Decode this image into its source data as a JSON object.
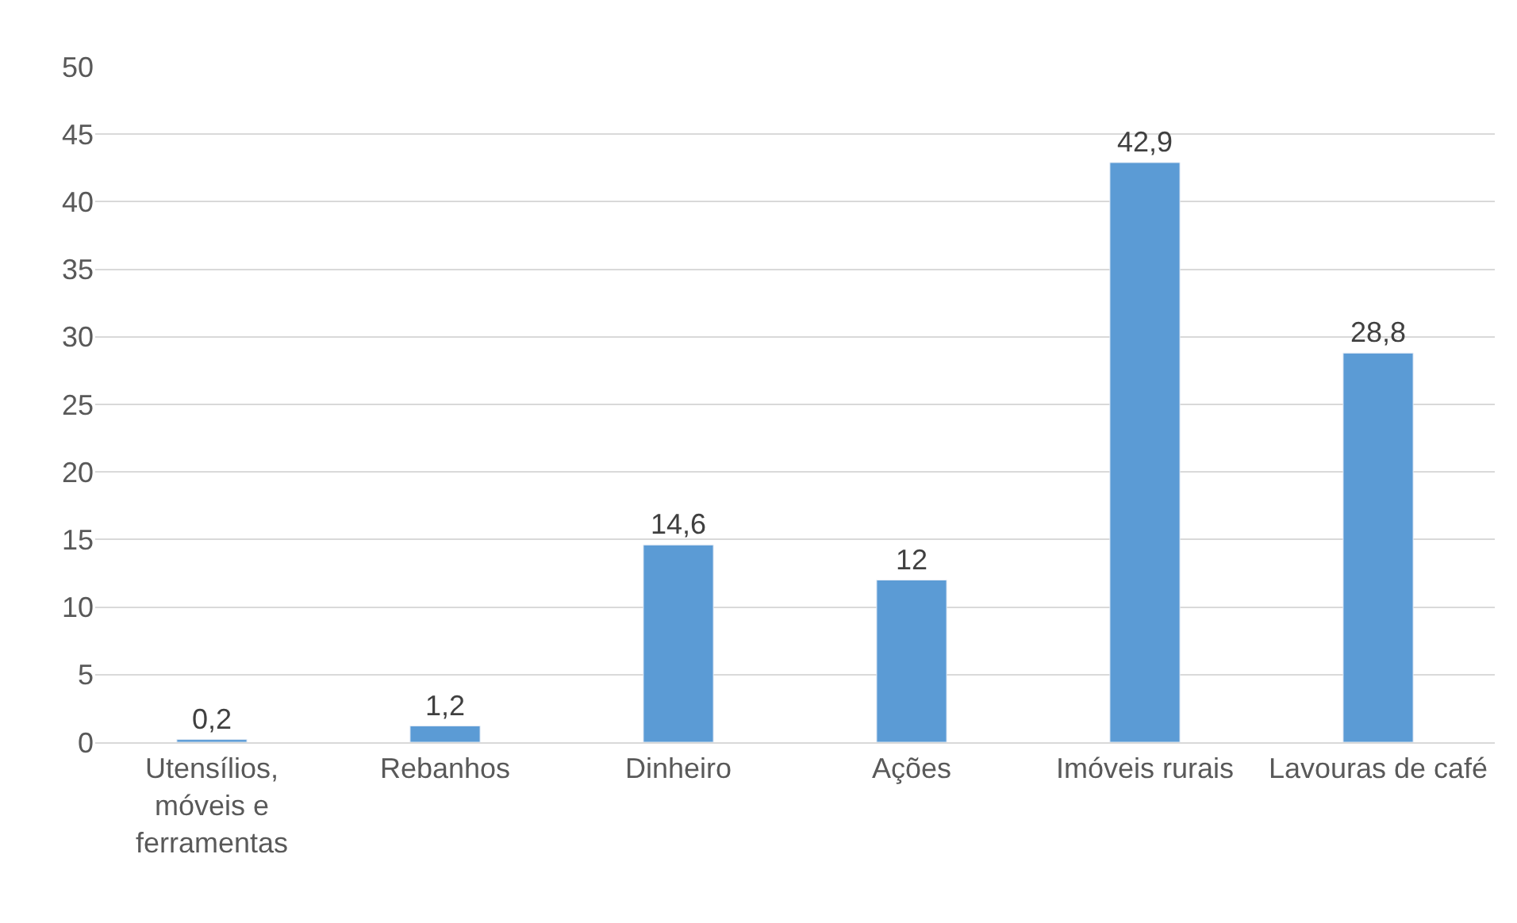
{
  "chart_data": {
    "type": "bar",
    "categories": [
      "Utensílios, móveis e ferramentas",
      "Rebanhos",
      "Dinheiro",
      "Ações",
      "Imóveis rurais",
      "Lavouras de café"
    ],
    "values": [
      0.2,
      1.2,
      14.6,
      12,
      42.9,
      28.8
    ],
    "value_labels": [
      "0,2",
      "1,2",
      "14,6",
      "12",
      "42,9",
      "28,8"
    ],
    "color": "#5b9bd5",
    "ylim": [
      0,
      50
    ],
    "yticks": [
      0,
      5,
      10,
      15,
      20,
      25,
      30,
      35,
      40,
      45,
      50
    ],
    "grid": "y",
    "legend": false
  }
}
